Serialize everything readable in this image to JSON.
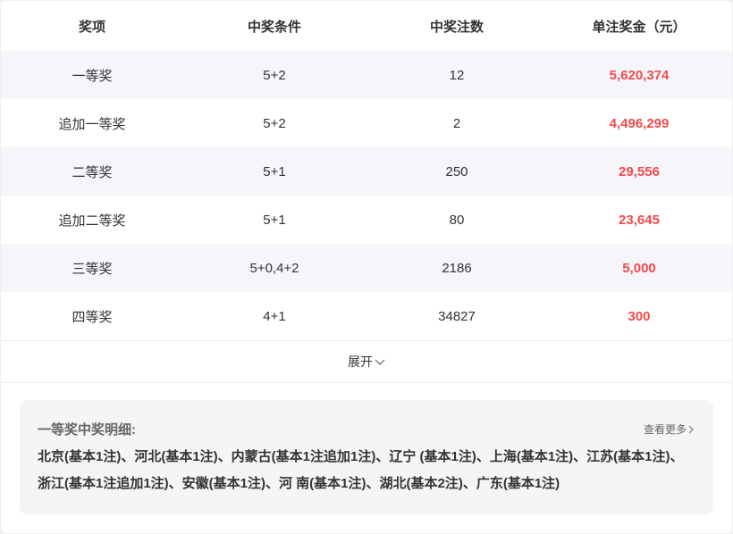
{
  "table": {
    "headers": [
      "奖项",
      "中奖条件",
      "中奖注数",
      "单注奖金（元）"
    ],
    "rows": [
      [
        "一等奖",
        "5+2",
        "12",
        "5,620,374"
      ],
      [
        "追加一等奖",
        "5+2",
        "2",
        "4,496,299"
      ],
      [
        "二等奖",
        "5+1",
        "250",
        "29,556"
      ],
      [
        "追加二等奖",
        "5+1",
        "80",
        "23,645"
      ],
      [
        "三等奖",
        "5+0,4+2",
        "2186",
        "5,000"
      ],
      [
        "四等奖",
        "4+1",
        "34827",
        "300"
      ]
    ]
  },
  "expand_label": "展开",
  "detail": {
    "title": "一等奖中奖明细:",
    "more_label": "查看更多",
    "text": "北京(基本1注)、河北(基本1注)、内蒙古(基本1注追加1注)、辽宁 (基本1注)、上海(基本1注)、江苏(基本1注)、浙江(基本1注追加1注)、安徽(基本1注)、河 南(基本1注)、湖北(基本2注)、广东(基本1注)"
  },
  "colors": {
    "prize": "#f04a4a",
    "alt_row": "#f5f5fa"
  }
}
